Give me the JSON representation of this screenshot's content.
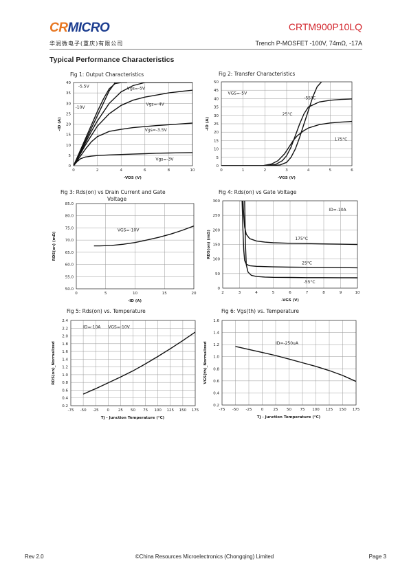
{
  "header": {
    "logo_cr": "CR",
    "logo_micro": "MICRO",
    "part_number": "CRTM900P10LQ",
    "company_cn": "华润微电子(重庆)有限公司",
    "description": "Trench P-MOSFET -100V, 74mΩ, -17A"
  },
  "section_title": "Typical Performance Characteristics",
  "footer": {
    "rev": "Rev 2.0",
    "copyright": "©China Resources Microelectronics (Chongqing) Limited",
    "page": "Page 3"
  },
  "chart_data": [
    {
      "id": "fig1",
      "type": "line",
      "title": "Fig 1: Output Characteristics",
      "xlabel": "-V<sub>DS</sub> (V)",
      "xlabel_text": "-VDS (V)",
      "ylabel_text": "-ID (A)",
      "xlim": [
        0,
        10
      ],
      "ylim": [
        0,
        40
      ],
      "xticks": [
        0,
        2,
        4,
        6,
        8,
        10
      ],
      "yticks": [
        0,
        5,
        10,
        15,
        20,
        25,
        30,
        35,
        40
      ],
      "grid": true,
      "series": [
        {
          "name": "-5.5V",
          "x": [
            0,
            0.5,
            1,
            1.5,
            2,
            2.5,
            3,
            3.5
          ],
          "y": [
            0,
            6,
            12,
            18,
            24,
            30,
            36,
            40
          ]
        },
        {
          "name": "Vgs=-5V",
          "x": [
            0,
            0.5,
            1,
            1.5,
            2,
            3,
            4,
            5,
            6,
            7,
            8,
            9,
            10
          ],
          "y": [
            0,
            5.5,
            11,
            16.5,
            21.5,
            30,
            35.5,
            38.5,
            40,
            40,
            40,
            40,
            40
          ]
        },
        {
          "name": "-10V",
          "x": [
            0,
            0.5,
            1,
            1.5,
            2,
            2.5,
            3,
            3.5,
            4,
            4.5
          ],
          "y": [
            0,
            6.5,
            13,
            19.5,
            26,
            32,
            37,
            39.5,
            40,
            40
          ]
        },
        {
          "name": "Vgs=-4V",
          "x": [
            0,
            0.5,
            1,
            1.5,
            2,
            3,
            4,
            5,
            6,
            7,
            8,
            9,
            10
          ],
          "y": [
            0,
            5,
            10,
            14.5,
            19,
            25,
            29,
            31.5,
            33,
            34,
            35,
            35.7,
            36.3
          ]
        },
        {
          "name": "Vgs=-3.5V",
          "x": [
            0,
            0.5,
            1,
            1.5,
            2,
            3,
            4,
            5,
            6,
            7,
            8,
            9,
            10
          ],
          "y": [
            0,
            4,
            8,
            11.5,
            14,
            16.5,
            17.5,
            18.3,
            18.8,
            19.3,
            19.7,
            20.1,
            20.5
          ]
        },
        {
          "name": "Vgs=-3V",
          "x": [
            0,
            0.3,
            0.6,
            1,
            1.5,
            2,
            3,
            4,
            5,
            6,
            7,
            8,
            9,
            10
          ],
          "y": [
            0,
            2,
            3.4,
            4.2,
            4.6,
            4.9,
            5.2,
            5.4,
            5.6,
            5.8,
            6,
            6.1,
            6.2,
            6.3
          ]
        }
      ],
      "annotations": [
        "-5.5V",
        "Vgs=-5V",
        "-10V",
        "Vgs=-4V",
        "Vgs=-3.5V",
        "Vgs=-3V"
      ]
    },
    {
      "id": "fig2",
      "type": "line",
      "title": "Fig 2: Transfer Characteristics",
      "xlabel_text": "-VGS (V)",
      "ylabel_text": "-ID (A)",
      "xlim": [
        0,
        6
      ],
      "ylim": [
        0,
        50
      ],
      "xticks": [
        0,
        1,
        2,
        3,
        4,
        5,
        6
      ],
      "yticks": [
        0,
        5,
        10,
        15,
        20,
        25,
        30,
        35,
        40,
        45,
        50
      ],
      "grid": true,
      "series": [
        {
          "name": "-55°C",
          "x": [
            0,
            2.3,
            2.7,
            3,
            3.2,
            3.4,
            3.6,
            3.8,
            4,
            4.2,
            4.4,
            4.6
          ],
          "y": [
            0,
            0,
            0.5,
            2,
            5,
            10,
            17,
            25,
            33,
            41,
            47,
            50
          ]
        },
        {
          "name": "25°C",
          "x": [
            0,
            2.1,
            2.5,
            2.8,
            3,
            3.2,
            3.4,
            3.6,
            3.8,
            4,
            4.5,
            5,
            5.5,
            6
          ],
          "y": [
            0,
            0,
            0.8,
            3,
            6,
            11,
            18,
            25,
            31,
            35,
            38,
            39,
            39.5,
            39.8
          ]
        },
        {
          "name": "175°C",
          "x": [
            0,
            1.9,
            2.3,
            2.6,
            2.9,
            3.1,
            3.3,
            3.5,
            3.8,
            4,
            4.5,
            5,
            5.5,
            6
          ],
          "y": [
            0,
            0,
            1,
            3,
            7,
            11,
            15,
            18,
            21,
            22.5,
            24.5,
            25.5,
            26,
            26.4
          ]
        }
      ],
      "annotations": [
        "VGS=-5V",
        "-55°C",
        "25°C",
        "175°C"
      ]
    },
    {
      "id": "fig3",
      "type": "line",
      "title": "Fig 3: Rds(on) vs Drain Current and Gate Voltage",
      "xlabel_text": "-ID (A)",
      "ylabel_text": "RDS(on) (mΩ)",
      "xlim": [
        0,
        20
      ],
      "ylim": [
        50.0,
        85.0
      ],
      "xticks": [
        0,
        5,
        10,
        15,
        20
      ],
      "yticks": [
        "50.0",
        "55.0",
        "60.0",
        "65.0",
        "70.0",
        "75.0",
        "80.0",
        "85.0"
      ],
      "grid": true,
      "series": [
        {
          "name": "VGS=-10V",
          "x": [
            3,
            4,
            6,
            8,
            10,
            12,
            14,
            16,
            18,
            20
          ],
          "y": [
            67.6,
            67.6,
            67.8,
            68.3,
            69.0,
            70.0,
            71.1,
            72.4,
            74.0,
            75.8
          ]
        }
      ],
      "annotations": [
        "VGS=-10V"
      ]
    },
    {
      "id": "fig4",
      "type": "line",
      "title": "Fig 4: Rds(on) vs Gate Voltage",
      "xlabel_text": "-VGS (V)",
      "ylabel_text": "RDS(on) (mΩ)",
      "xlim": [
        2,
        10
      ],
      "ylim": [
        0,
        300
      ],
      "xticks": [
        2,
        3,
        4,
        5,
        6,
        7,
        8,
        9,
        10
      ],
      "yticks": [
        0,
        50,
        100,
        150,
        200,
        250,
        300
      ],
      "grid": true,
      "series": [
        {
          "name": "175°C",
          "x": [
            3.2,
            3.25,
            3.3,
            3.4,
            3.6,
            4,
            4.5,
            5,
            6,
            7,
            8,
            9,
            10
          ],
          "y": [
            300,
            250,
            210,
            185,
            170,
            162,
            158,
            156,
            154,
            153,
            152,
            151,
            150
          ]
        },
        {
          "name": "25°C",
          "x": [
            3.15,
            3.2,
            3.25,
            3.3,
            3.4,
            3.6,
            4,
            4.5,
            5,
            6,
            7,
            8,
            9,
            10
          ],
          "y": [
            300,
            200,
            130,
            95,
            82,
            77,
            75,
            74,
            73,
            72,
            71.5,
            71,
            70.5,
            70
          ]
        },
        {
          "name": "-55°C",
          "x": [
            3.3,
            3.35,
            3.4,
            3.5,
            3.7,
            4,
            4.5,
            5,
            6,
            7,
            8,
            9,
            10
          ],
          "y": [
            300,
            150,
            80,
            55,
            44,
            40,
            38,
            37,
            36.5,
            36,
            35.8,
            35.6,
            35.5
          ]
        }
      ],
      "annotations": [
        "ID=-10A",
        "175°C",
        "25°C",
        "-55°C"
      ]
    },
    {
      "id": "fig5",
      "type": "line",
      "title": "Fig 5: Rds(on) vs. Temperature",
      "xlabel_text": "Tj - Junction Temperature (°C)",
      "ylabel_text": "RDS(on)_Normalized",
      "xlim": [
        -75,
        175
      ],
      "ylim": [
        0.2,
        2.4
      ],
      "xticks": [
        -75,
        -50,
        -25,
        0,
        25,
        50,
        75,
        100,
        125,
        150,
        175
      ],
      "yticks": [
        "0.2",
        "0.4",
        "0.6",
        "0.8",
        "1.0",
        "1.2",
        "1.4",
        "1.6",
        "1.8",
        "2.0",
        "2.2",
        "2.4"
      ],
      "grid": true,
      "series": [
        {
          "name": "RDS(on)",
          "x": [
            -50,
            -25,
            0,
            25,
            50,
            75,
            100,
            125,
            150,
            175
          ],
          "y": [
            0.5,
            0.64,
            0.79,
            0.94,
            1.1,
            1.28,
            1.47,
            1.67,
            1.88,
            2.1
          ]
        }
      ],
      "annotations": [
        "ID=-10A",
        "VGS=-10V"
      ]
    },
    {
      "id": "fig6",
      "type": "line",
      "title": "Fig 6: Vgs(th) vs. Temperature",
      "xlabel_text": "Tj - Junction Temperature (°C)",
      "ylabel_text": "VGS(th)_Normalized",
      "xlim": [
        -75,
        175
      ],
      "ylim": [
        0.2,
        1.6
      ],
      "xticks": [
        -75,
        -50,
        -25,
        0,
        25,
        50,
        75,
        100,
        125,
        150,
        175
      ],
      "yticks": [
        "0.2",
        "0.4",
        "0.6",
        "0.8",
        "1.0",
        "1.2",
        "1.4",
        "1.6"
      ],
      "grid": true,
      "series": [
        {
          "name": "VGS(th)",
          "x": [
            -50,
            -25,
            0,
            25,
            50,
            75,
            100,
            125,
            150,
            175
          ],
          "y": [
            1.17,
            1.12,
            1.07,
            1.02,
            0.96,
            0.9,
            0.84,
            0.77,
            0.69,
            0.59
          ]
        }
      ],
      "annotations": [
        "ID=-250uA"
      ]
    }
  ]
}
